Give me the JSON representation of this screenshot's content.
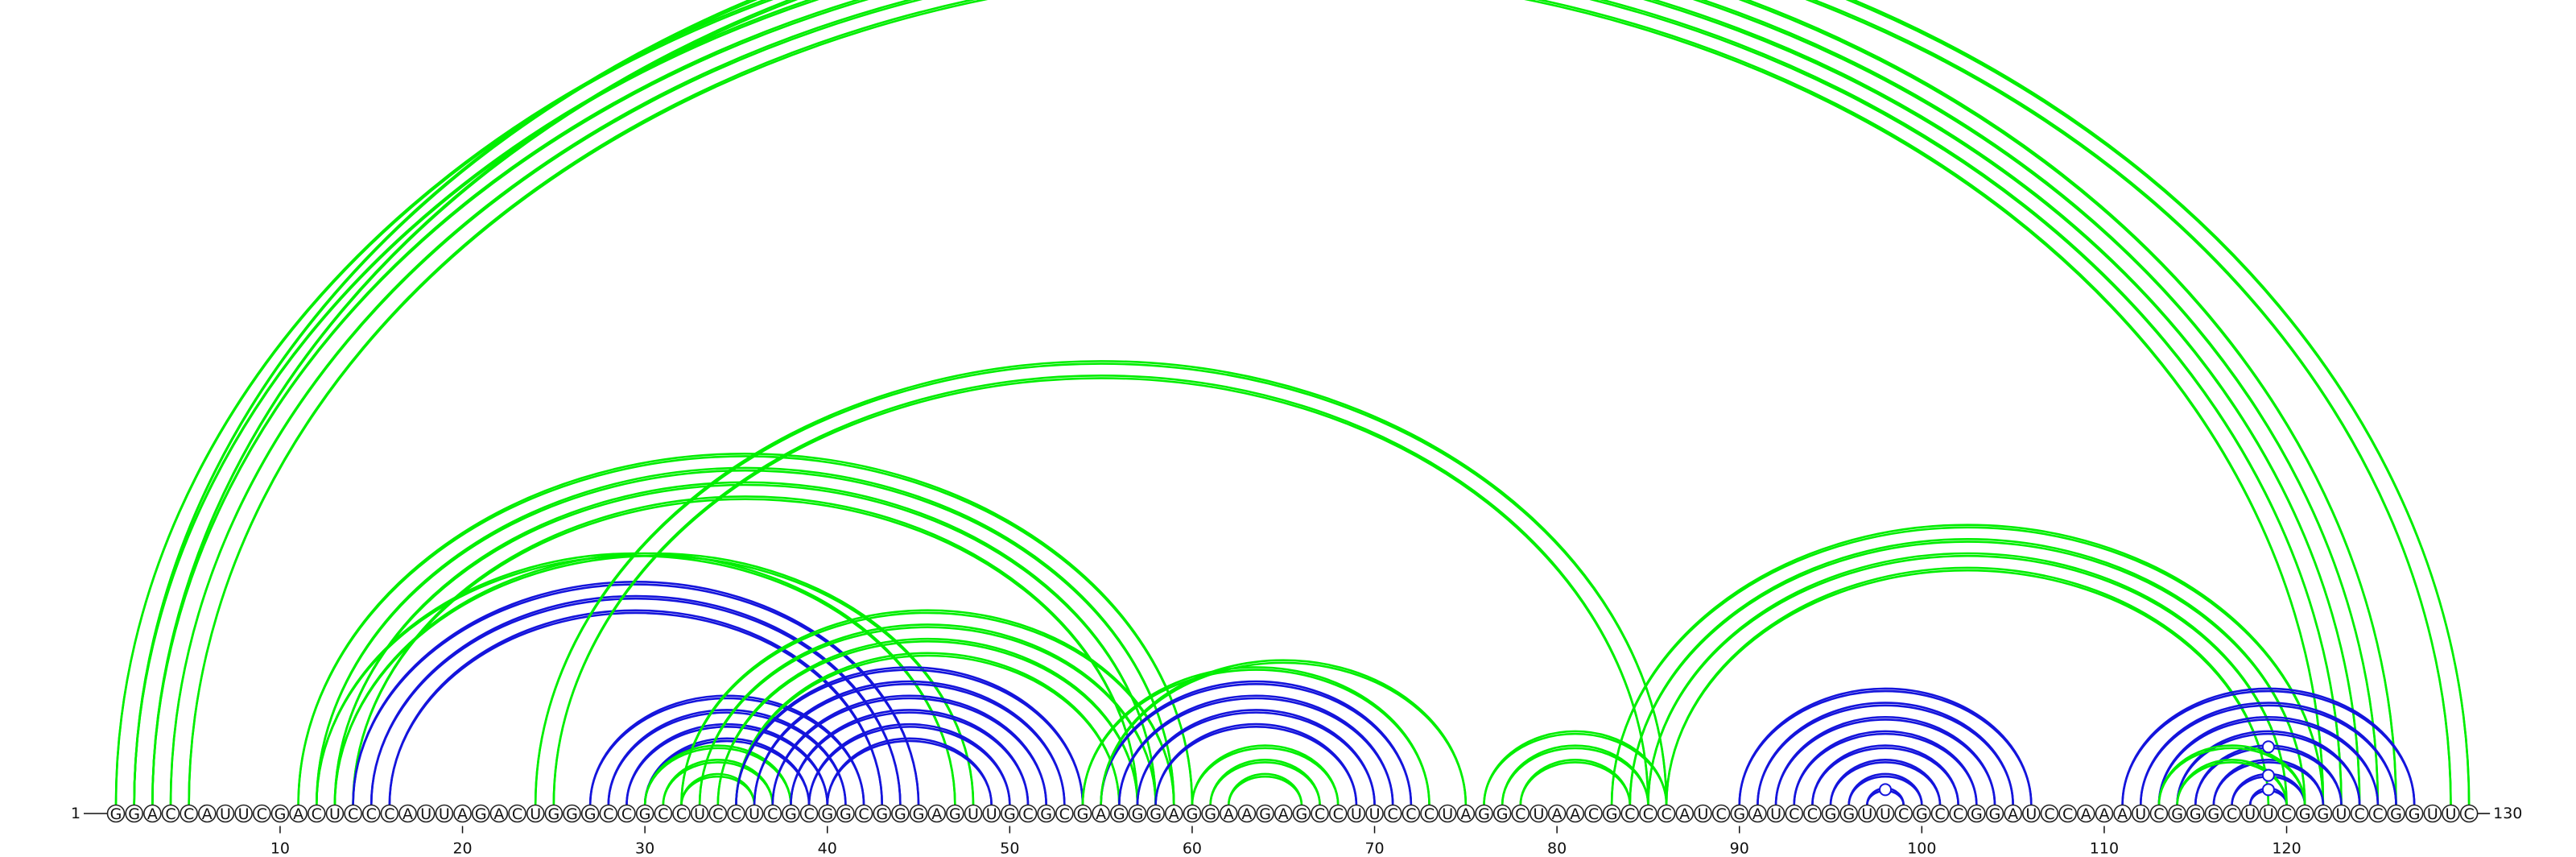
{
  "sequence": "GGACCAUUCGACUCCCAUUAGACUGGGCCGCCUCCUCGCGGCGGGAGUUGCGCGAGGGAGGAAGAGCCUUCCCUAGGCUAACGCCCAUCGAUCCGGUUCGCCGGAUCCAAAUCGGGCUUCGGUCCGGUUC",
  "start_label": "1",
  "end_label": "130",
  "tick_numbers": [
    10,
    20,
    30,
    40,
    50,
    60,
    70,
    80,
    90,
    100,
    110,
    120
  ],
  "colors": {
    "green": "#00ee00",
    "blue": "#1414dc",
    "node_stroke": "#222222"
  },
  "arc_groups": [
    {
      "color": "green",
      "pairs": [
        [
          1,
          126
        ],
        [
          2,
          125
        ],
        [
          3,
          124
        ],
        [
          4,
          123
        ],
        [
          5,
          122
        ]
      ]
    },
    {
      "color": "green",
      "pairs": [
        [
          2,
          130
        ],
        [
          3,
          129
        ]
      ]
    },
    {
      "color": "green",
      "pairs": [
        [
          11,
          60
        ],
        [
          12,
          59
        ],
        [
          13,
          58
        ],
        [
          14,
          57
        ]
      ]
    },
    {
      "color": "blue",
      "pairs": [
        [
          14,
          45
        ],
        [
          15,
          44
        ],
        [
          16,
          43
        ]
      ]
    },
    {
      "color": "green",
      "pairs": [
        [
          13,
          48
        ],
        [
          12,
          47
        ]
      ]
    },
    {
      "color": "green",
      "pairs": [
        [
          25,
          85
        ],
        [
          24,
          86
        ]
      ]
    },
    {
      "color": "blue",
      "pairs": [
        [
          27,
          42
        ],
        [
          28,
          41
        ],
        [
          29,
          40
        ],
        [
          30,
          39
        ]
      ]
    },
    {
      "color": "green",
      "pairs": [
        [
          30,
          38
        ],
        [
          31,
          37
        ],
        [
          32,
          36
        ]
      ]
    },
    {
      "color": "green",
      "pairs": [
        [
          32,
          59
        ],
        [
          33,
          58
        ],
        [
          34,
          57
        ],
        [
          35,
          56
        ]
      ]
    },
    {
      "color": "blue",
      "pairs": [
        [
          35,
          54
        ],
        [
          36,
          53
        ],
        [
          37,
          52
        ],
        [
          38,
          51
        ],
        [
          39,
          50
        ],
        [
          40,
          49
        ]
      ]
    },
    {
      "color": "blue",
      "pairs": [
        [
          55,
          72
        ],
        [
          56,
          71
        ],
        [
          57,
          70
        ],
        [
          58,
          69
        ]
      ]
    },
    {
      "color": "green",
      "pairs": [
        [
          54,
          73
        ],
        [
          55,
          75
        ]
      ]
    },
    {
      "color": "green",
      "pairs": [
        [
          60,
          68
        ],
        [
          61,
          67
        ],
        [
          62,
          66
        ]
      ]
    },
    {
      "color": "green",
      "pairs": [
        [
          76,
          86
        ],
        [
          77,
          85
        ],
        [
          78,
          84
        ]
      ]
    },
    {
      "color": "green",
      "pairs": [
        [
          83,
          122
        ],
        [
          84,
          121
        ],
        [
          85,
          120
        ],
        [
          86,
          119
        ]
      ]
    },
    {
      "color": "blue",
      "pairs": [
        [
          90,
          106
        ],
        [
          91,
          105
        ],
        [
          92,
          104
        ],
        [
          93,
          103
        ],
        [
          94,
          102
        ],
        [
          95,
          101
        ],
        [
          96,
          100
        ],
        [
          97,
          99
        ]
      ]
    },
    {
      "color": "blue",
      "pairs": [
        [
          111,
          127
        ],
        [
          112,
          126
        ],
        [
          113,
          125
        ],
        [
          114,
          124
        ],
        [
          115,
          123
        ],
        [
          116,
          122
        ],
        [
          117,
          121
        ],
        [
          118,
          120
        ]
      ]
    },
    {
      "color": "green",
      "pairs": [
        [
          113,
          121
        ],
        [
          114,
          120
        ]
      ]
    }
  ],
  "markers": [
    {
      "pair": [
        3,
        129
      ],
      "color": "green"
    },
    {
      "pair": [
        97,
        99
      ],
      "color": "blue"
    },
    {
      "pair": [
        118,
        120
      ],
      "color": "blue"
    },
    {
      "pair": [
        117,
        121
      ],
      "color": "blue"
    },
    {
      "pair": [
        115,
        123
      ],
      "color": "blue"
    }
  ]
}
